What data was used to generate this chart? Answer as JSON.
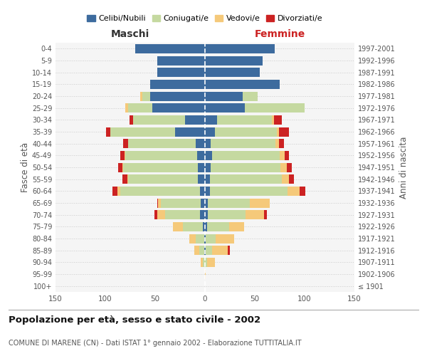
{
  "age_groups": [
    "100+",
    "95-99",
    "90-94",
    "85-89",
    "80-84",
    "75-79",
    "70-74",
    "65-69",
    "60-64",
    "55-59",
    "50-54",
    "45-49",
    "40-44",
    "35-39",
    "30-34",
    "25-29",
    "20-24",
    "15-19",
    "10-14",
    "5-9",
    "0-4"
  ],
  "birth_years": [
    "≤ 1901",
    "1902-1906",
    "1907-1911",
    "1912-1916",
    "1917-1921",
    "1922-1926",
    "1927-1931",
    "1932-1936",
    "1937-1941",
    "1942-1946",
    "1947-1951",
    "1952-1956",
    "1957-1961",
    "1962-1966",
    "1967-1971",
    "1972-1976",
    "1977-1981",
    "1982-1986",
    "1987-1991",
    "1992-1996",
    "1997-2001"
  ],
  "male": {
    "celibi": [
      0,
      0,
      0,
      1,
      1,
      2,
      5,
      4,
      5,
      7,
      7,
      8,
      9,
      30,
      20,
      53,
      55,
      55,
      48,
      48,
      70
    ],
    "coniugati": [
      0,
      0,
      2,
      5,
      8,
      20,
      35,
      40,
      80,
      70,
      75,
      72,
      68,
      65,
      52,
      24,
      8,
      0,
      0,
      0,
      0
    ],
    "vedovi": [
      0,
      0,
      2,
      5,
      7,
      10,
      8,
      3,
      3,
      1,
      1,
      1,
      0,
      0,
      0,
      3,
      2,
      0,
      0,
      0,
      0
    ],
    "divorziati": [
      0,
      0,
      0,
      0,
      0,
      0,
      3,
      1,
      5,
      5,
      4,
      4,
      5,
      4,
      4,
      0,
      0,
      0,
      0,
      0,
      0
    ]
  },
  "female": {
    "nubili": [
      0,
      0,
      0,
      1,
      1,
      2,
      3,
      3,
      5,
      5,
      6,
      7,
      6,
      10,
      12,
      40,
      38,
      75,
      55,
      58,
      70
    ],
    "coniugate": [
      0,
      0,
      2,
      6,
      10,
      22,
      38,
      42,
      78,
      72,
      70,
      68,
      65,
      62,
      55,
      60,
      15,
      0,
      0,
      0,
      0
    ],
    "vedove": [
      0,
      1,
      8,
      16,
      18,
      15,
      18,
      20,
      12,
      7,
      6,
      5,
      3,
      2,
      2,
      0,
      0,
      0,
      0,
      0,
      0
    ],
    "divorziate": [
      0,
      0,
      0,
      2,
      0,
      0,
      3,
      0,
      6,
      5,
      5,
      4,
      5,
      10,
      8,
      0,
      0,
      0,
      0,
      0,
      0
    ]
  },
  "colors": {
    "celibi": "#3d6b9e",
    "coniugati": "#c5d9a0",
    "vedovi": "#f5c97a",
    "divorziati": "#cc2222"
  },
  "xlim": 150,
  "title": "Popolazione per età, sesso e stato civile - 2002",
  "subtitle": "COMUNE DI MARENE (CN) - Dati ISTAT 1° gennaio 2002 - Elaborazione TUTTITALIA.IT",
  "legend_labels": [
    "Celibi/Nubili",
    "Coniugati/e",
    "Vedovi/e",
    "Divorziati/e"
  ],
  "xlabel_left": "Maschi",
  "xlabel_right": "Femmine",
  "ylabel_left": "Fasce di età",
  "ylabel_right": "Anni di nascita",
  "bg_color": "#f5f5f5",
  "grid_color": "#cccccc"
}
